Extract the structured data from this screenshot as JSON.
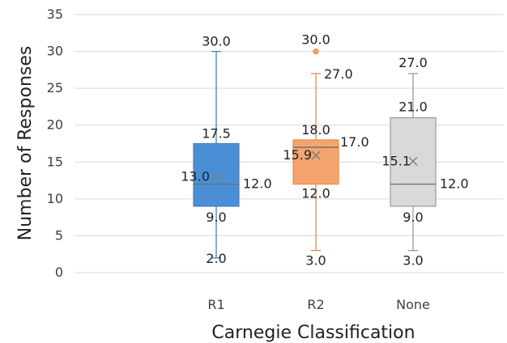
{
  "chart_data": {
    "type": "box",
    "xlabel": "Carnegie Classification",
    "ylabel": "Number of Responses",
    "ylim": [
      0,
      35
    ],
    "yticks": [
      0,
      5,
      10,
      15,
      20,
      25,
      30,
      35
    ],
    "ytick_labels": [
      "0",
      "5",
      "10",
      "15",
      "20",
      "25",
      "30",
      "35"
    ],
    "grid": true,
    "categories": [
      "R1",
      "R2",
      "None"
    ],
    "series": [
      {
        "category": "R1",
        "color": "#4a8fd6",
        "whisker_color": "#4a7fb5",
        "min": 2.0,
        "q1": 9.0,
        "median": 12.0,
        "q3": 17.5,
        "max": 30.0,
        "mean": 13.0,
        "outliers": [],
        "labels": {
          "max": "30.0",
          "q3": "17.5",
          "mean": "13.0",
          "median": "12.0",
          "q1": "9.0",
          "min": "2.0"
        }
      },
      {
        "category": "R2",
        "color": "#f4a56e",
        "whisker_color": "#e9894a",
        "min": 3.0,
        "q1": 12.0,
        "median": 17.0,
        "q3": 18.0,
        "max": 27.0,
        "mean": 15.9,
        "outliers": [
          30.0
        ],
        "labels": {
          "outlier": "30.0",
          "max": "27.0",
          "q3": "18.0",
          "mean": "15.9",
          "median": "17.0",
          "q1": "12.0",
          "min": "3.0"
        }
      },
      {
        "category": "None",
        "color": "#d9d9d9",
        "whisker_color": "#9a9a9a",
        "min": 3.0,
        "q1": 9.0,
        "median": 12.0,
        "q3": 21.0,
        "max": 27.0,
        "mean": 15.1,
        "outliers": [],
        "labels": {
          "max": "27.0",
          "q3": "21.0",
          "mean": "15.1",
          "median": "12.0",
          "q1": "9.0",
          "min": "3.0"
        }
      }
    ]
  }
}
